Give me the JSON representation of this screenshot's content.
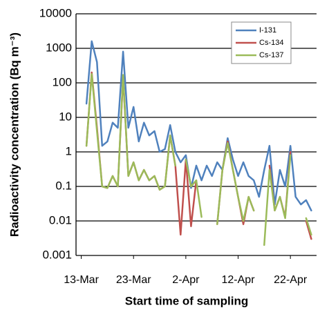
{
  "chart_data": {
    "type": "line",
    "xlabel": "Start time of sampling",
    "ylabel": "Radioactivity concentration (Bq m⁻³)",
    "yscale": "log",
    "grid": true,
    "legend": "upper right",
    "xlim": [
      "12-Mar",
      "27-Apr"
    ],
    "xticks": [
      "13-Mar",
      "23-Mar",
      "2-Apr",
      "12-Apr",
      "22-Apr"
    ],
    "ylim": [
      0.001,
      10000
    ],
    "yticks": [
      0.001,
      0.01,
      0.1,
      1,
      10,
      100,
      1000,
      10000
    ],
    "x": [
      "14-Mar",
      "15-Mar",
      "16-Mar",
      "17-Mar",
      "18-Mar",
      "19-Mar",
      "20-Mar",
      "21-Mar",
      "22-Mar",
      "23-Mar",
      "24-Mar",
      "25-Mar",
      "26-Mar",
      "27-Mar",
      "28-Mar",
      "29-Mar",
      "30-Mar",
      "31-Mar",
      "1-Apr",
      "2-Apr",
      "3-Apr",
      "4-Apr",
      "5-Apr",
      "6-Apr",
      "7-Apr",
      "8-Apr",
      "9-Apr",
      "10-Apr",
      "11-Apr",
      "12-Apr",
      "13-Apr",
      "14-Apr",
      "15-Apr",
      "16-Apr",
      "17-Apr",
      "18-Apr",
      "19-Apr",
      "20-Apr",
      "21-Apr",
      "22-Apr",
      "23-Apr",
      "24-Apr",
      "25-Apr",
      "26-Apr"
    ],
    "series": [
      {
        "name": "I-131",
        "color": "#4f81bd",
        "values": [
          25,
          1600,
          400,
          1.5,
          2,
          7,
          5,
          800,
          5,
          20,
          2,
          7,
          3,
          4,
          1,
          1.2,
          6,
          1,
          0.5,
          0.8,
          0.09,
          0.4,
          0.15,
          0.4,
          0.2,
          0.5,
          0.3,
          2.5,
          0.6,
          0.2,
          0.5,
          0.2,
          0.15,
          0.05,
          0.3,
          1.5,
          0.03,
          0.3,
          0.1,
          1.5,
          0.05,
          0.03,
          0.04,
          0.02
        ]
      },
      {
        "name": "Cs-134",
        "color": "#c0504d",
        "values": [
          1.5,
          200,
          5,
          0.1,
          0.09,
          0.2,
          0.1,
          150,
          0.2,
          0.5,
          0.15,
          0.3,
          0.15,
          0.2,
          0.08,
          0.1,
          3,
          0.4,
          0.004,
          0.6,
          0.007,
          0.15,
          null,
          null,
          null,
          0.008,
          0.3,
          2,
          0.3,
          0.05,
          0.008,
          0.05,
          0.02,
          null,
          null,
          0.4,
          0.02,
          0.05,
          0.013,
          1,
          null,
          null,
          0.01,
          0.003
        ]
      },
      {
        "name": "Cs-137",
        "color": "#9bbb59",
        "values": [
          1.5,
          180,
          4,
          0.1,
          0.09,
          0.2,
          0.1,
          170,
          0.2,
          0.5,
          0.15,
          0.3,
          0.15,
          0.2,
          0.08,
          0.1,
          3,
          0.4,
          null,
          0.6,
          0.1,
          0.15,
          0.013,
          null,
          null,
          0.008,
          0.3,
          1.8,
          0.3,
          0.05,
          0.01,
          0.05,
          0.02,
          null,
          0.002,
          0.3,
          0.02,
          0.05,
          0.012,
          0.8,
          null,
          null,
          0.012,
          0.004
        ]
      }
    ]
  }
}
